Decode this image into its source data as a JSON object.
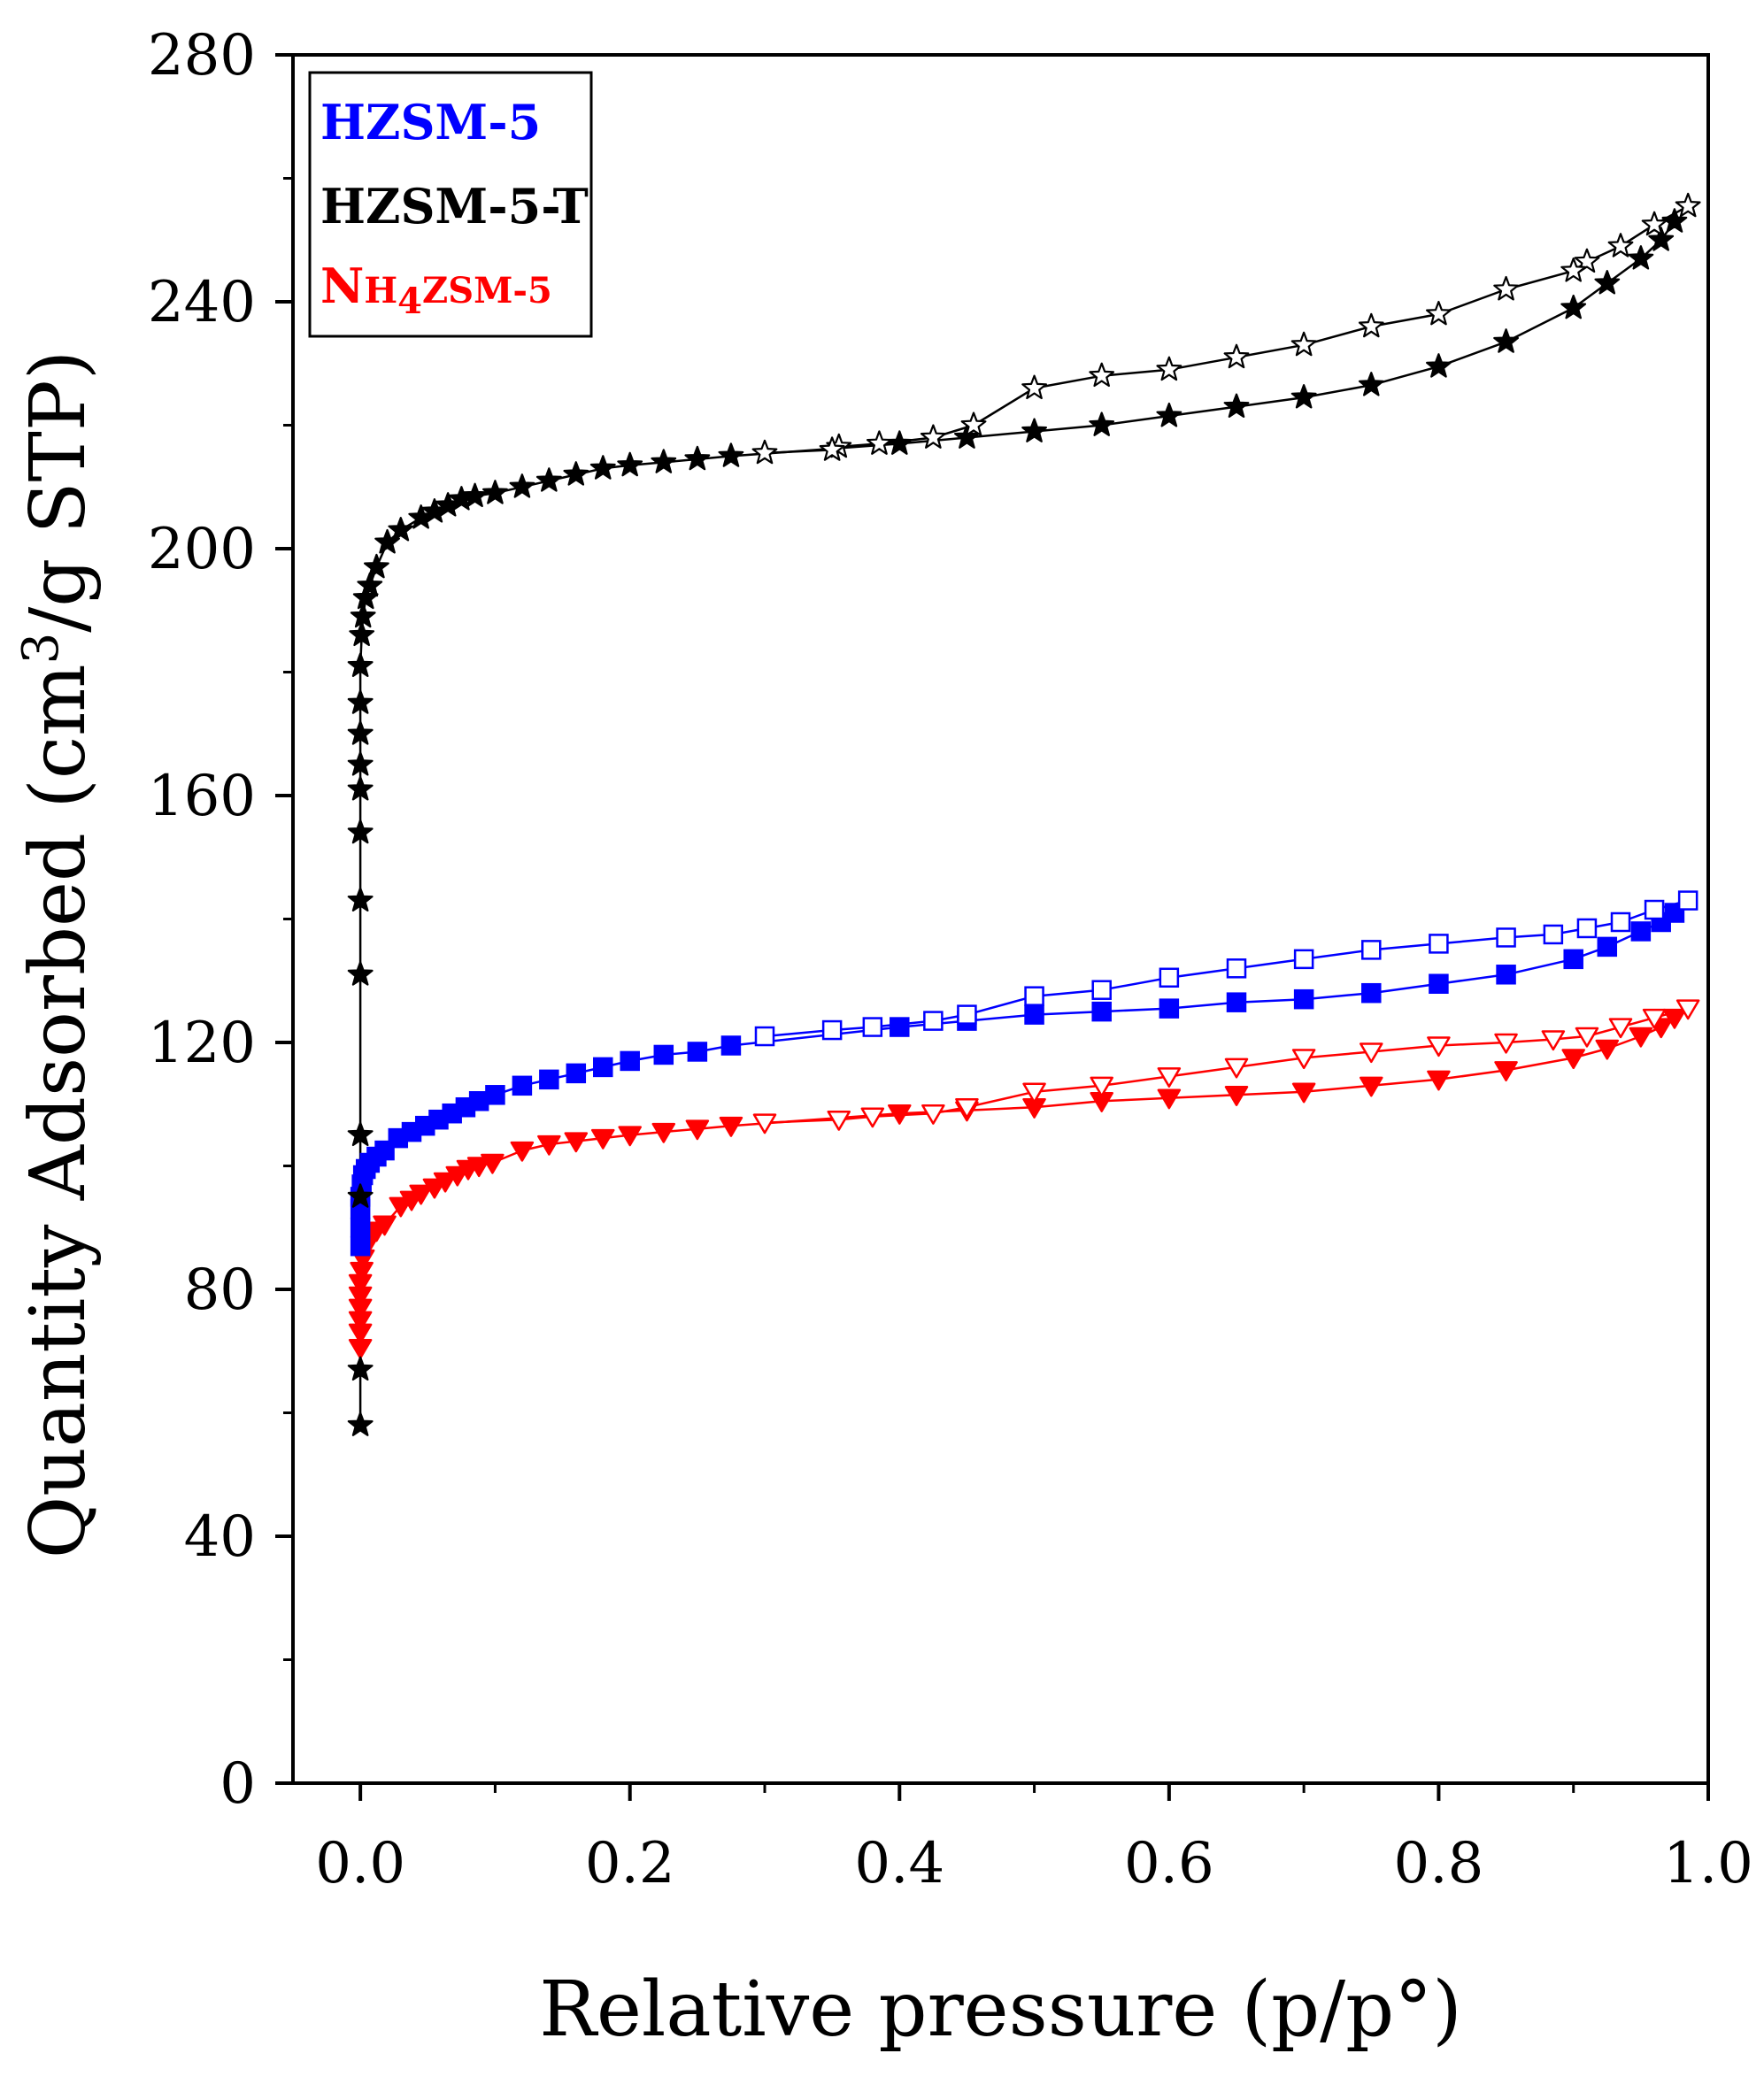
{
  "chart_data": {
    "type": "scatter",
    "title": "",
    "xlabel": "Relative pressure (p/p°)",
    "ylabel_parts": {
      "before": "Quantity Adsorbed (cm",
      "sup": "3",
      "after": "/g STP)"
    },
    "xlim": [
      -0.05,
      1.0
    ],
    "ylim": [
      0,
      280
    ],
    "x_ticks": [
      {
        "value": 0.0,
        "label": "0.0"
      },
      {
        "value": 0.2,
        "label": "0.2"
      },
      {
        "value": 0.4,
        "label": "0.4"
      },
      {
        "value": 0.6,
        "label": "0.6"
      },
      {
        "value": 0.8,
        "label": "0.8"
      },
      {
        "value": 1.0,
        "label": "1.0"
      }
    ],
    "y_ticks": [
      {
        "value": 0,
        "label": "0"
      },
      {
        "value": 40,
        "label": "40"
      },
      {
        "value": 80,
        "label": "80"
      },
      {
        "value": 120,
        "label": "120"
      },
      {
        "value": 160,
        "label": "160"
      },
      {
        "value": 200,
        "label": "200"
      },
      {
        "value": 240,
        "label": "240"
      },
      {
        "value": 280,
        "label": "280"
      }
    ],
    "legend_position": "top-left",
    "legend": [
      {
        "key": "hzsm5",
        "parts": [
          {
            "text": "HZSM-5",
            "sub": false
          }
        ],
        "color": "#0000ff"
      },
      {
        "key": "hzsm5t",
        "parts": [
          {
            "text": "HZSM-5-T",
            "sub": false
          }
        ],
        "color": "#000000"
      },
      {
        "key": "nh4zsm5",
        "parts": [
          {
            "text": "N",
            "sub": false
          },
          {
            "text": "H",
            "sub": false,
            "small": true
          },
          {
            "text": "4",
            "sub": true
          },
          {
            "text": "ZSM-5",
            "sub": false,
            "small": true
          }
        ],
        "color": "#ff0000"
      }
    ],
    "series": [
      {
        "name": "HZSM-5-T adsorption",
        "sample": "HZSM-5-T",
        "branch": "adsorption",
        "marker": "star",
        "filled": true,
        "color": "#000000",
        "x": [
          0.0,
          0.0,
          0.0,
          0.0,
          0.0,
          0.0,
          0.0,
          0.0,
          0.0,
          0.0,
          0.0,
          0.0,
          0.001,
          0.002,
          0.004,
          0.007,
          0.012,
          0.02,
          0.03,
          0.045,
          0.055,
          0.065,
          0.075,
          0.085,
          0.1,
          0.12,
          0.14,
          0.16,
          0.18,
          0.2,
          0.225,
          0.25,
          0.275,
          0.4,
          0.45,
          0.5,
          0.55,
          0.6,
          0.65,
          0.7,
          0.75,
          0.8,
          0.85,
          0.9,
          0.925,
          0.95,
          0.965,
          0.975
        ],
        "y": [
          58,
          67,
          95,
          105,
          131,
          143,
          154,
          161,
          165,
          170,
          175,
          181,
          186,
          189,
          192,
          194,
          197,
          201,
          203,
          205,
          206,
          207,
          208,
          208.5,
          209,
          210,
          211,
          212,
          213,
          213.5,
          214,
          214.5,
          215,
          217,
          218,
          219,
          220,
          221.5,
          223,
          224.5,
          226.5,
          229.5,
          233.5,
          239,
          243,
          247,
          250,
          253
        ]
      },
      {
        "name": "HZSM-5-T desorption",
        "sample": "HZSM-5-T",
        "branch": "desorption",
        "marker": "star",
        "filled": false,
        "color": "#000000",
        "x": [
          0.985,
          0.96,
          0.935,
          0.91,
          0.9,
          0.85,
          0.8,
          0.75,
          0.7,
          0.65,
          0.6,
          0.55,
          0.5,
          0.455,
          0.425,
          0.385,
          0.355,
          0.35,
          0.3
        ],
        "y": [
          255.5,
          252.5,
          249,
          246.5,
          245,
          242,
          238,
          236,
          233,
          231,
          229,
          228,
          226,
          220,
          218,
          217,
          216.5,
          216,
          215.5
        ]
      },
      {
        "name": "HZSM-5 adsorption",
        "sample": "HZSM-5",
        "branch": "adsorption",
        "marker": "square",
        "filled": true,
        "color": "#0000ff",
        "x": [
          0.0,
          0.0,
          0.0,
          0.0,
          0.001,
          0.002,
          0.004,
          0.007,
          0.012,
          0.018,
          0.028,
          0.038,
          0.048,
          0.058,
          0.068,
          0.078,
          0.088,
          0.1,
          0.12,
          0.14,
          0.16,
          0.18,
          0.2,
          0.225,
          0.25,
          0.275,
          0.4,
          0.45,
          0.5,
          0.55,
          0.6,
          0.65,
          0.7,
          0.75,
          0.8,
          0.85,
          0.9,
          0.925,
          0.95,
          0.965,
          0.975
        ],
        "y": [
          87,
          90,
          93,
          95,
          97,
          98.5,
          99.5,
          100.5,
          101.5,
          102.5,
          104.5,
          105.5,
          106.5,
          107.5,
          108.5,
          109.5,
          110.5,
          111.5,
          113,
          114,
          115,
          116,
          117,
          118,
          118.5,
          119.5,
          122.5,
          123.5,
          124.5,
          125,
          125.5,
          126.5,
          127,
          128,
          129.5,
          131,
          133.5,
          135.5,
          138,
          139.5,
          141
        ]
      },
      {
        "name": "HZSM-5 desorption",
        "sample": "HZSM-5",
        "branch": "desorption",
        "marker": "square",
        "filled": false,
        "color": "#0000ff",
        "x": [
          0.985,
          0.96,
          0.935,
          0.91,
          0.885,
          0.85,
          0.8,
          0.75,
          0.7,
          0.65,
          0.6,
          0.55,
          0.5,
          0.45,
          0.425,
          0.38,
          0.35,
          0.3
        ],
        "y": [
          143,
          141.5,
          139.5,
          138.5,
          137.5,
          137,
          136,
          135,
          133.5,
          132,
          130.5,
          128.5,
          127.5,
          124.5,
          123.5,
          122.5,
          122,
          121
        ]
      },
      {
        "name": "NH4ZSM-5 adsorption",
        "sample": "NH4ZSM-5",
        "branch": "adsorption",
        "marker": "triangle-down",
        "filled": true,
        "color": "#ff0000",
        "x": [
          0.0,
          0.0,
          0.0,
          0.0,
          0.0,
          0.0,
          0.001,
          0.002,
          0.003,
          0.005,
          0.008,
          0.012,
          0.018,
          0.03,
          0.038,
          0.045,
          0.055,
          0.063,
          0.072,
          0.08,
          0.088,
          0.098,
          0.12,
          0.14,
          0.16,
          0.18,
          0.2,
          0.225,
          0.25,
          0.275,
          0.4,
          0.45,
          0.5,
          0.55,
          0.6,
          0.65,
          0.7,
          0.75,
          0.8,
          0.85,
          0.9,
          0.925,
          0.95,
          0.965,
          0.975
        ],
        "y": [
          70.5,
          73,
          75,
          77,
          79,
          81,
          83,
          85,
          86.5,
          87.5,
          88.5,
          89.5,
          90.5,
          93.5,
          94.5,
          95.5,
          96.5,
          97.5,
          98.5,
          99.5,
          100,
          100.5,
          102.5,
          103.5,
          104,
          104.5,
          105,
          105.5,
          106,
          106.5,
          108.5,
          109,
          109.5,
          110.5,
          111,
          111.5,
          112,
          113,
          114,
          115.5,
          117.5,
          119,
          121,
          122.5,
          124
        ]
      },
      {
        "name": "NH4ZSM-5 desorption",
        "sample": "NH4ZSM-5",
        "branch": "desorption",
        "marker": "triangle-down",
        "filled": false,
        "color": "#ff0000",
        "x": [
          0.985,
          0.96,
          0.935,
          0.91,
          0.885,
          0.85,
          0.8,
          0.75,
          0.7,
          0.65,
          0.6,
          0.55,
          0.5,
          0.45,
          0.425,
          0.38,
          0.355,
          0.3
        ],
        "y": [
          125.5,
          124,
          122.5,
          121,
          120.5,
          120,
          119.5,
          118.5,
          117.5,
          116,
          114.5,
          113,
          112,
          109.5,
          108.5,
          108,
          107.5,
          107
        ]
      }
    ]
  }
}
